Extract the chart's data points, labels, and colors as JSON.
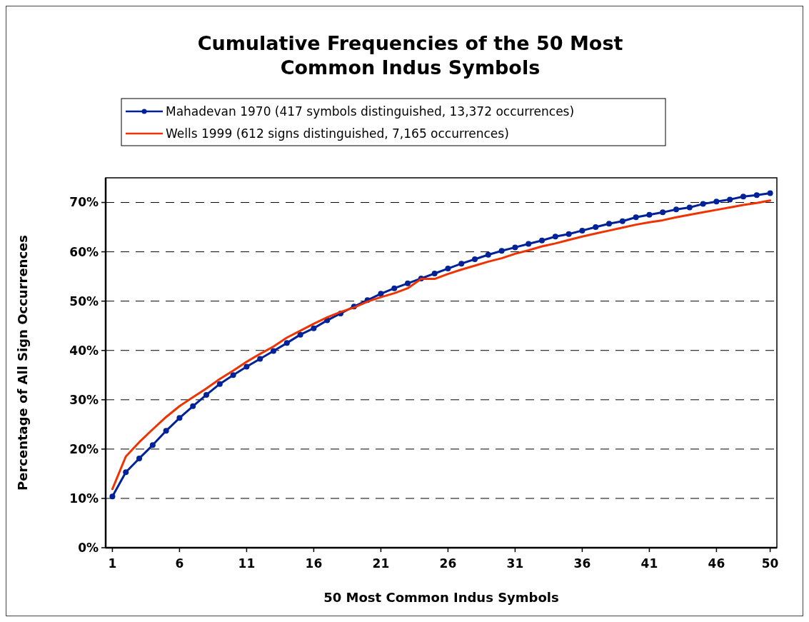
{
  "chart_data": {
    "type": "line",
    "title": "Cumulative Frequencies of the 50 Most Common Indus Symbols",
    "xlabel": "50 Most Common Indus Symbols",
    "ylabel": "Percentage of All Sign Occurrences",
    "x": [
      1,
      2,
      3,
      4,
      5,
      6,
      7,
      8,
      9,
      10,
      11,
      12,
      13,
      14,
      15,
      16,
      17,
      18,
      19,
      20,
      21,
      22,
      23,
      24,
      25,
      26,
      27,
      28,
      29,
      30,
      31,
      32,
      33,
      34,
      35,
      36,
      37,
      38,
      39,
      40,
      41,
      42,
      43,
      44,
      45,
      46,
      47,
      48,
      49,
      50
    ],
    "xlim": [
      0.5,
      50.5
    ],
    "xticks": [
      1,
      6,
      11,
      16,
      21,
      26,
      31,
      36,
      41,
      46,
      50
    ],
    "ylim": [
      0,
      75
    ],
    "yticks": [
      {
        "value": 0,
        "label": "0%"
      },
      {
        "value": 10,
        "label": "10%"
      },
      {
        "value": 20,
        "label": "20%"
      },
      {
        "value": 30,
        "label": "30%"
      },
      {
        "value": 40,
        "label": "40%"
      },
      {
        "value": 50,
        "label": "50%"
      },
      {
        "value": 60,
        "label": "60%"
      },
      {
        "value": 70,
        "label": "70%"
      }
    ],
    "grid": "y",
    "legend": "top",
    "series": [
      {
        "name": "Mahadevan 1970 (417 symbols distinguished, 13,372 occurrences)",
        "color": "#002299",
        "marker": "circle",
        "values": [
          10.4,
          15.3,
          18.1,
          20.8,
          23.7,
          26.3,
          28.7,
          31.0,
          33.2,
          35.0,
          36.7,
          38.3,
          39.9,
          41.5,
          43.2,
          44.5,
          46.1,
          47.5,
          48.9,
          50.2,
          51.5,
          52.6,
          53.6,
          54.6,
          55.6,
          56.6,
          57.6,
          58.5,
          59.4,
          60.2,
          60.9,
          61.6,
          62.3,
          63.1,
          63.6,
          64.3,
          65.0,
          65.7,
          66.2,
          67.0,
          67.5,
          68.0,
          68.6,
          69.0,
          69.7,
          70.2,
          70.6,
          71.2,
          71.5,
          71.9
        ]
      },
      {
        "name": "Wells 1999 (612 signs distinguished, 7,165 occurrences)",
        "color": "#ee3300",
        "marker": "none",
        "values": [
          11.9,
          18.5,
          21.4,
          24.0,
          26.5,
          28.7,
          30.5,
          32.3,
          34.2,
          35.9,
          37.7,
          39.3,
          40.8,
          42.6,
          44.0,
          45.4,
          46.7,
          47.8,
          48.7,
          49.9,
          50.8,
          51.6,
          52.6,
          54.5,
          54.5,
          55.5,
          56.4,
          57.2,
          58.0,
          58.7,
          59.6,
          60.3,
          61.1,
          61.7,
          62.4,
          63.1,
          63.7,
          64.3,
          64.9,
          65.5,
          66.0,
          66.4,
          67.0,
          67.5,
          68.0,
          68.5,
          69.0,
          69.5,
          69.9,
          70.4
        ]
      }
    ]
  }
}
